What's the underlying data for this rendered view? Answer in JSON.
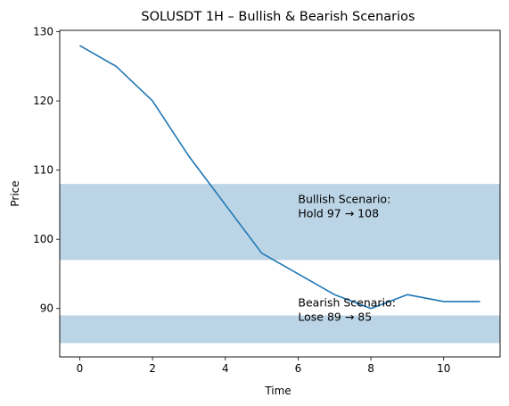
{
  "chart_data": {
    "type": "line",
    "title": "SOLUSDT 1H – Bullish & Bearish Scenarios",
    "xlabel": "Time",
    "ylabel": "Price",
    "xlim": [
      -0.55,
      11.55
    ],
    "ylim": [
      83,
      130.2
    ],
    "x_ticks": [
      0,
      2,
      4,
      6,
      8,
      10
    ],
    "y_ticks": [
      90,
      100,
      110,
      120,
      130
    ],
    "grid": false,
    "series": [
      {
        "x": [
          0,
          1,
          2,
          3,
          4,
          5,
          6,
          7,
          8,
          9,
          10,
          11
        ],
        "values": [
          128,
          125,
          120,
          112,
          105,
          98,
          95,
          92,
          90,
          92,
          91,
          91
        ],
        "color": "#1f77b4"
      }
    ],
    "bands": [
      {
        "y0": 97,
        "y1": 108,
        "color": "#bcd5e6"
      },
      {
        "y0": 85,
        "y1": 89,
        "color": "#bcd5e6"
      }
    ],
    "annotations": [
      {
        "x": 6,
        "y": 103.2,
        "lines": [
          "Bullish Scenario:",
          "Hold 97 → 108"
        ]
      },
      {
        "x": 6,
        "y": 88.2,
        "lines": [
          "Bearish Scenario:",
          "Lose 89 → 85"
        ]
      }
    ]
  }
}
